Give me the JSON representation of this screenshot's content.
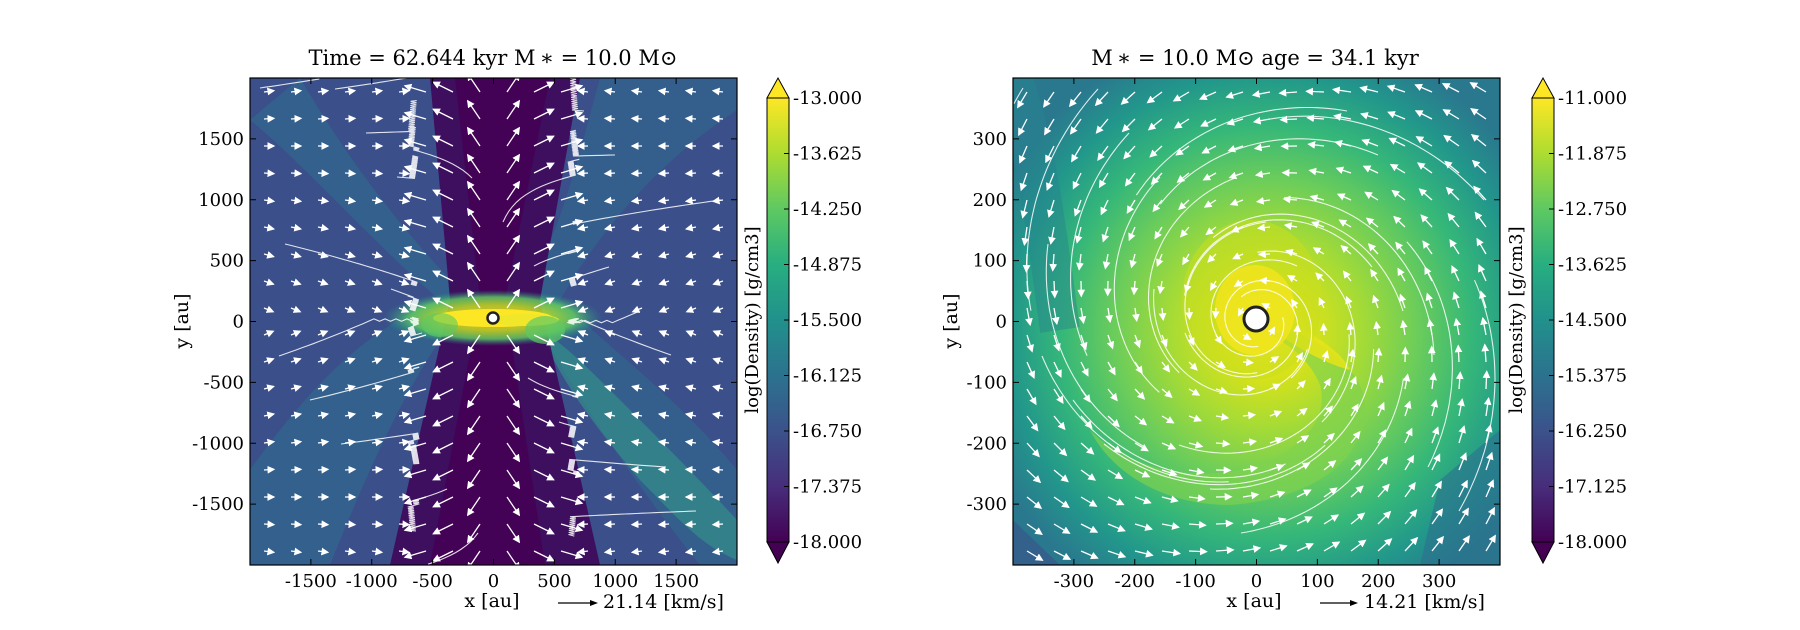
{
  "chart_data": [
    {
      "type": "heatmap",
      "title": "Time = 62.644 kyr    M ∗ = 10.0 M⊙",
      "xlabel": "x [au]",
      "ylabel": "y [au]",
      "xlim": [
        -2000,
        2000
      ],
      "ylim": [
        -2000,
        2000
      ],
      "xticks": [
        -1500,
        -1000,
        -500,
        0,
        500,
        1000,
        1500
      ],
      "yticks": [
        -1500,
        -1000,
        -500,
        0,
        500,
        1000,
        1500
      ],
      "vector_key": "21.14 [km/s]",
      "colorbar": {
        "label": "log(Density) [g/cm3]",
        "range": [
          -18.0,
          -13.0
        ],
        "ticks": [
          "-13.000",
          "-13.625",
          "-14.250",
          "-14.875",
          "-15.500",
          "-16.125",
          "-16.750",
          "-17.375",
          "-18.000"
        ],
        "colormap": "viridis"
      },
      "features": "edge-on view: dense horizontal disk at center with low-density bipolar outflow cavity along y, velocity arrows pointing outward along the outflow",
      "sink": {
        "x": 0,
        "y": 0
      }
    },
    {
      "type": "heatmap",
      "title": "M ∗ = 10.0 M⊙          age = 34.1 kyr",
      "xlabel": "x [au]",
      "ylabel": "y [au]",
      "xlim": [
        -400,
        400
      ],
      "ylim": [
        -400,
        400
      ],
      "xticks": [
        -300,
        -200,
        -100,
        0,
        100,
        200,
        300
      ],
      "yticks": [
        -300,
        -200,
        -100,
        0,
        100,
        200,
        300
      ],
      "vector_key": "14.21 [km/s]",
      "colorbar": {
        "label": "log(Density) [g/cm3]",
        "range": [
          -18.0,
          -11.0
        ],
        "ticks": [
          "-11.000",
          "-11.875",
          "-12.750",
          "-13.625",
          "-14.500",
          "-15.375",
          "-16.250",
          "-17.125",
          "-18.000"
        ],
        "colormap": "viridis"
      },
      "features": "face-on view: rotating disk with spiral arm, dense bright center, counter-clockwise velocity field",
      "sink": {
        "x": 0,
        "y": 0
      }
    }
  ]
}
